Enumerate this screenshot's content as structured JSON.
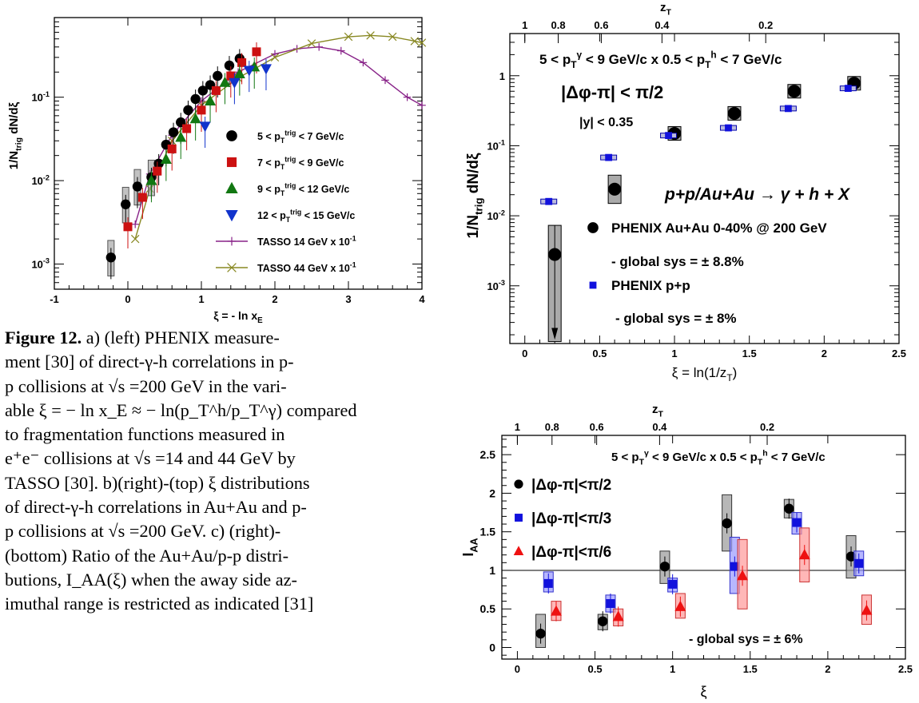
{
  "chart_data": [
    {
      "type": "scatter",
      "panel": "a",
      "xlabel": "ξ = - ln x_E",
      "ylabel": "1/N_trig dN/dξ",
      "xlim": [
        -1,
        4
      ],
      "ylim": [
        0.0005,
        0.9
      ],
      "yscale": "log",
      "xticks": [
        "-1",
        "0",
        "1",
        "2",
        "3",
        "4"
      ],
      "yticks": [
        "10^-3",
        "10^-2",
        "10^-1"
      ],
      "legend_position": "center-right",
      "series": [
        {
          "name": "5 < p_T^trig < 7 GeV/c",
          "marker": "circle",
          "color": "#000000",
          "x": [
            -0.23,
            -0.03,
            0.13,
            0.32,
            0.42,
            0.52,
            0.62,
            0.72,
            0.82,
            0.92,
            1.02,
            1.12,
            1.22,
            1.38,
            1.52
          ],
          "y": [
            0.0012,
            0.0052,
            0.0085,
            0.011,
            0.016,
            0.027,
            0.038,
            0.05,
            0.07,
            0.095,
            0.12,
            0.14,
            0.18,
            0.24,
            0.29
          ]
        },
        {
          "name": "7 < p_T^trig < 9 GeV/c",
          "marker": "square",
          "color": "#cc1111",
          "x": [
            0.0,
            0.2,
            0.4,
            0.6,
            0.8,
            1.0,
            1.2,
            1.4,
            1.55,
            1.75
          ],
          "y": [
            0.0028,
            0.0063,
            0.013,
            0.024,
            0.042,
            0.07,
            0.12,
            0.18,
            0.26,
            0.35
          ]
        },
        {
          "name": "9 < p_T^trig < 12 GeV/c",
          "marker": "triangle",
          "color": "#117711",
          "x": [
            0.32,
            0.52,
            0.72,
            0.92,
            1.12,
            1.32,
            1.52,
            1.72
          ],
          "y": [
            0.01,
            0.018,
            0.033,
            0.055,
            0.09,
            0.15,
            0.19,
            0.23
          ]
        },
        {
          "name": "12 < p_T^trig < 15 GeV/c",
          "marker": "triangle-down",
          "color": "#1133cc",
          "x": [
            1.05,
            1.45,
            1.65,
            1.88
          ],
          "y": [
            0.045,
            0.15,
            0.21,
            0.22
          ]
        },
        {
          "name": "TASSO 14 GeV x 10^-1",
          "marker": "plus-line",
          "color": "#882288",
          "x": [
            0.1,
            0.3,
            0.6,
            1.0,
            1.5,
            2.0,
            2.3,
            2.6,
            2.9,
            3.2,
            3.5,
            3.8,
            4.0
          ],
          "y": [
            0.003,
            0.012,
            0.035,
            0.09,
            0.2,
            0.33,
            0.38,
            0.4,
            0.36,
            0.26,
            0.16,
            0.1,
            0.08
          ]
        },
        {
          "name": "TASSO 44 GeV x 10^-1",
          "marker": "x-line",
          "color": "#888822",
          "x": [
            0.1,
            0.3,
            0.6,
            1.0,
            1.5,
            2.0,
            2.5,
            3.0,
            3.3,
            3.6,
            3.9,
            4.0
          ],
          "y": [
            0.002,
            0.008,
            0.03,
            0.08,
            0.17,
            0.3,
            0.44,
            0.53,
            0.55,
            0.53,
            0.47,
            0.45
          ]
        }
      ]
    },
    {
      "type": "scatter",
      "panel": "b",
      "xlabel": "ξ = ln(1/z_T)",
      "ylabel": "1/N_trig dN/dξ",
      "top_axis_label": "z_T",
      "top_ticks": [
        "1",
        "0.8",
        "0.6",
        "0.4",
        "0.2"
      ],
      "xlim": [
        -0.1,
        2.5
      ],
      "ylim": [
        0.00015,
        4
      ],
      "yscale": "log",
      "xticks": [
        "0",
        "0.5",
        "1",
        "1.5",
        "2",
        "2.5"
      ],
      "yticks": [
        "10^-3",
        "10^-2",
        "10^-1",
        "1"
      ],
      "annotations": [
        "5 < p_T^γ < 9 GeV/c x 0.5 < p_T^h < 7 GeV/c",
        "|Δφ-π| < π/2",
        "|y| < 0.35",
        "p+p/Au+Au → γ + h + X",
        "- global sys = ± 8.8%",
        "- global sys = ± 8%"
      ],
      "legend_position": "bottom-right",
      "series": [
        {
          "name": "PHENIX Au+Au 0-40% @ 200 GeV",
          "marker": "circle",
          "color": "#000000",
          "x": [
            0.2,
            0.6,
            1.0,
            1.4,
            1.8,
            2.2
          ],
          "y": [
            0.0028,
            0.024,
            0.15,
            0.29,
            0.6,
            0.78
          ]
        },
        {
          "name": "PHENIX p+p",
          "marker": "square",
          "color": "#1111dd",
          "x": [
            0.16,
            0.56,
            0.96,
            1.36,
            1.76,
            2.16
          ],
          "y": [
            0.016,
            0.068,
            0.14,
            0.18,
            0.34,
            0.66
          ]
        }
      ]
    },
    {
      "type": "scatter",
      "panel": "c",
      "xlabel": "ξ",
      "ylabel": "I_AA",
      "top_axis_label": "z_T",
      "top_ticks": [
        "1",
        "0.8",
        "0.6",
        "0.4",
        "0.2"
      ],
      "xlim": [
        -0.1,
        2.5
      ],
      "ylim": [
        -0.15,
        2.75
      ],
      "xticks": [
        "0",
        "0.5",
        "1",
        "1.5",
        "2",
        "2.5"
      ],
      "yticks": [
        "0",
        "0.5",
        "1",
        "1.5",
        "2",
        "2.5"
      ],
      "annotations": [
        "5 < p_T^γ < 9 GeV/c x 0.5 < p_T^h < 7 GeV/c",
        "- global sys = ± 6%"
      ],
      "legend_position": "top-left",
      "series": [
        {
          "name": "|Δφ-π|<π/2",
          "marker": "circle",
          "color": "#000000",
          "x": [
            0.15,
            0.55,
            0.95,
            1.35,
            1.75,
            2.15
          ],
          "y": [
            0.18,
            0.34,
            1.05,
            1.61,
            1.8,
            1.18
          ]
        },
        {
          "name": "|Δφ-π|<π/3",
          "marker": "square",
          "color": "#1111dd",
          "x": [
            0.2,
            0.6,
            1.0,
            1.4,
            1.8,
            2.2
          ],
          "y": [
            0.83,
            0.57,
            0.82,
            1.05,
            1.62,
            1.09
          ]
        },
        {
          "name": "|Δφ-π|<π/6",
          "marker": "triangle",
          "color": "#ee1111",
          "x": [
            0.25,
            0.65,
            1.05,
            1.45,
            1.85,
            2.25
          ],
          "y": [
            0.47,
            0.4,
            0.53,
            0.93,
            1.2,
            0.48
          ]
        }
      ]
    }
  ],
  "caption": {
    "label": "Figure 12.",
    "lines": [
      "a) (left) PHENIX measure-",
      "ment [30] of direct-γ-h correlations in p-",
      "p collisions at √s =200 GeV in the vari-",
      "able ξ = − ln x_E ≈ − ln(p_T^h/p_T^γ) compared",
      "to fragmentation functions measured in",
      "e⁺e⁻ collisions at √s =14 and 44 GeV by",
      "TASSO [30]. b)(right)-(top) ξ distributions",
      "of direct-γ-h correlations in Au+Au and p-",
      "p collisions at √s =200 GeV. c) (right)-",
      "(bottom) Ratio of the Au+Au/p-p distri-",
      "butions, I_AA(ξ) when the away side az-",
      "imuthal range is restricted as indicated [31]"
    ]
  }
}
